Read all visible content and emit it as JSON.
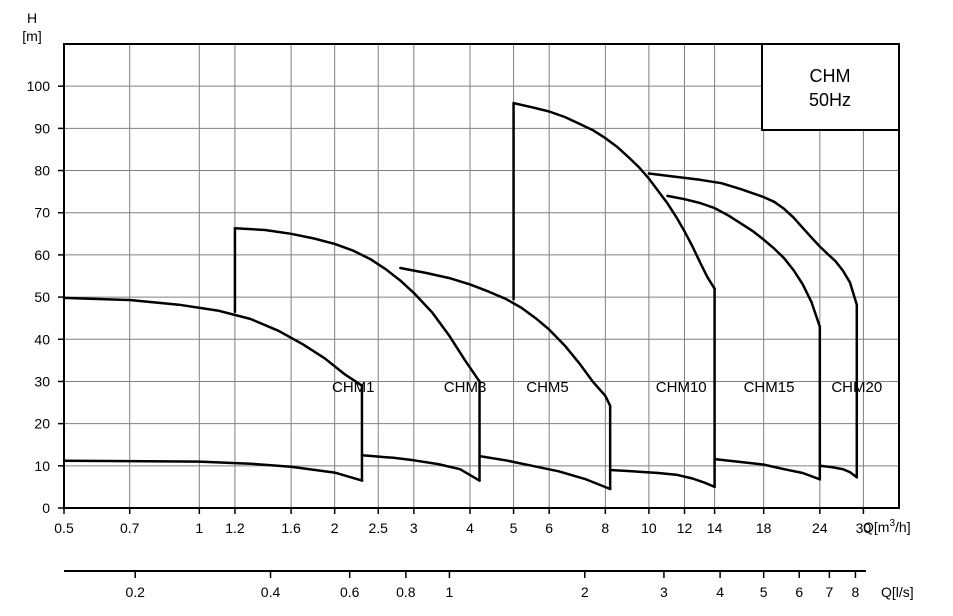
{
  "chart_data": {
    "type": "line",
    "y_axis": {
      "title_line1": "H",
      "title_line2": "[m]",
      "ylim": [
        0,
        110
      ],
      "ticks": [
        0,
        10,
        20,
        30,
        40,
        50,
        60,
        70,
        80,
        90,
        100
      ]
    },
    "x_axis_flow_m3h": {
      "label": "Q[m³/h]",
      "label_prefix": "Q[m",
      "label_sup": "3",
      "label_suffix": "/h]",
      "scale": "log",
      "xlim": [
        0.5,
        36
      ],
      "ticks": [
        0.5,
        0.7,
        1,
        1.2,
        1.6,
        2,
        2.5,
        3,
        4,
        5,
        6,
        8,
        10,
        12,
        14,
        18,
        24,
        30
      ],
      "tick_labels": [
        "0.5",
        "0.7",
        "1",
        "1.2",
        "1.6",
        "2",
        "2.5",
        "3",
        "4",
        "5",
        "6",
        "8",
        "10",
        "12",
        "14",
        "18",
        "24",
        "30"
      ]
    },
    "x_axis_flow_ls": {
      "label": "Q[l/s]",
      "scale": "log",
      "ticks": [
        0.2,
        0.4,
        0.6,
        0.8,
        1,
        2,
        3,
        4,
        5,
        6,
        7,
        8
      ],
      "tick_labels": [
        "0.2",
        "0.4",
        "0.6",
        "0.8",
        "1",
        "2",
        "3",
        "4",
        "5",
        "6",
        "7",
        "8"
      ]
    },
    "legend_box": {
      "line1": "CHM",
      "line2": "50Hz"
    },
    "grid": true,
    "series": [
      {
        "name": "CHM1",
        "label_at": [
          2.2,
          27.5
        ],
        "upper": [
          [
            0.5,
            49.8
          ],
          [
            0.7,
            49.3
          ],
          [
            0.9,
            48.2
          ],
          [
            1.1,
            46.8
          ],
          [
            1.3,
            44.8
          ],
          [
            1.5,
            42.0
          ],
          [
            1.7,
            38.8
          ],
          [
            1.9,
            35.5
          ],
          [
            2.1,
            31.8
          ],
          [
            2.3,
            29.0
          ]
        ],
        "lower": [
          [
            0.5,
            11.2
          ],
          [
            1.0,
            11.0
          ],
          [
            1.3,
            10.5
          ],
          [
            1.6,
            9.8
          ],
          [
            2.0,
            8.4
          ],
          [
            2.3,
            6.5
          ]
        ],
        "left_edge": false
      },
      {
        "name": "CHM3",
        "label_at": [
          3.9,
          27.5
        ],
        "upper": [
          [
            1.2,
            66.3
          ],
          [
            1.4,
            65.9
          ],
          [
            1.6,
            65.0
          ],
          [
            1.8,
            63.9
          ],
          [
            2.0,
            62.6
          ],
          [
            2.2,
            61.0
          ],
          [
            2.4,
            59.0
          ],
          [
            2.6,
            56.6
          ],
          [
            2.8,
            53.9
          ],
          [
            3.0,
            51.0
          ],
          [
            3.3,
            46.3
          ],
          [
            3.6,
            40.8
          ],
          [
            3.9,
            35.0
          ],
          [
            4.2,
            30.0
          ]
        ],
        "lower": [
          [
            2.3,
            12.5
          ],
          [
            2.7,
            11.9
          ],
          [
            3.0,
            11.3
          ],
          [
            3.4,
            10.4
          ],
          [
            3.8,
            9.2
          ],
          [
            4.2,
            6.5
          ]
        ],
        "left_edge": true,
        "left_edge_bottom": 46.5
      },
      {
        "name": "CHM5",
        "label_at": [
          5.95,
          27.5
        ],
        "upper": [
          [
            2.8,
            56.9
          ],
          [
            3.2,
            55.7
          ],
          [
            3.6,
            54.5
          ],
          [
            4.0,
            53.0
          ],
          [
            4.4,
            51.3
          ],
          [
            4.8,
            49.6
          ],
          [
            5.2,
            47.5
          ],
          [
            5.6,
            45.0
          ],
          [
            6.0,
            42.3
          ],
          [
            6.5,
            38.5
          ],
          [
            7.0,
            34.3
          ],
          [
            7.5,
            30.0
          ],
          [
            8.0,
            26.6
          ],
          [
            8.2,
            24.2
          ]
        ],
        "lower": [
          [
            4.2,
            12.3
          ],
          [
            4.8,
            11.3
          ],
          [
            5.5,
            10.0
          ],
          [
            6.3,
            8.7
          ],
          [
            7.2,
            6.9
          ],
          [
            8.2,
            4.5
          ]
        ],
        "left_edge": false
      },
      {
        "name": "CHM10",
        "label_at": [
          11.8,
          27.5
        ],
        "upper": [
          [
            5.0,
            96.0
          ],
          [
            5.5,
            95.0
          ],
          [
            6.0,
            94.0
          ],
          [
            6.5,
            92.7
          ],
          [
            7.0,
            91.1
          ],
          [
            7.5,
            89.6
          ],
          [
            8.0,
            87.7
          ],
          [
            8.5,
            85.6
          ],
          [
            9.0,
            83.2
          ],
          [
            9.5,
            80.8
          ],
          [
            10.0,
            78.1
          ],
          [
            10.5,
            75.1
          ],
          [
            11.0,
            72.2
          ],
          [
            11.5,
            69.0
          ],
          [
            12.0,
            65.6
          ],
          [
            12.5,
            62.0
          ],
          [
            13.0,
            58.2
          ],
          [
            13.5,
            54.7
          ],
          [
            14.0,
            52.0
          ]
        ],
        "lower": [
          [
            8.2,
            9.0
          ],
          [
            9.5,
            8.6
          ],
          [
            10.5,
            8.3
          ],
          [
            11.5,
            7.9
          ],
          [
            12.5,
            7.0
          ],
          [
            13.3,
            6.0
          ],
          [
            14.0,
            5.0
          ]
        ],
        "left_edge": true,
        "left_edge_bottom": 49.5
      },
      {
        "name": "CHM15",
        "label_at": [
          18.5,
          27.5
        ],
        "upper": [
          [
            11.0,
            74.0
          ],
          [
            12.0,
            73.2
          ],
          [
            13.0,
            72.3
          ],
          [
            14.0,
            71.1
          ],
          [
            15.0,
            69.4
          ],
          [
            16.0,
            67.5
          ],
          [
            17.0,
            65.7
          ],
          [
            18.0,
            63.6
          ],
          [
            19.0,
            61.5
          ],
          [
            20.0,
            59.2
          ],
          [
            21.0,
            56.3
          ],
          [
            22.0,
            53.0
          ],
          [
            23.0,
            48.8
          ],
          [
            24.0,
            43.0
          ]
        ],
        "lower": [
          [
            14.0,
            11.6
          ],
          [
            16.0,
            10.9
          ],
          [
            18.0,
            10.3
          ],
          [
            20.0,
            9.2
          ],
          [
            22.0,
            8.3
          ],
          [
            24.0,
            6.8
          ]
        ],
        "left_edge": false
      },
      {
        "name": "CHM20",
        "label_at": [
          29.0,
          27.5
        ],
        "upper": [
          [
            10.0,
            79.3
          ],
          [
            11.5,
            78.5
          ],
          [
            13.0,
            77.8
          ],
          [
            14.5,
            77.0
          ],
          [
            16.0,
            75.6
          ],
          [
            18.0,
            73.7
          ],
          [
            19.0,
            72.6
          ],
          [
            20.0,
            70.9
          ],
          [
            21.0,
            68.8
          ],
          [
            22.0,
            66.4
          ],
          [
            23.0,
            64.1
          ],
          [
            24.0,
            62.0
          ],
          [
            25.0,
            60.2
          ],
          [
            26.0,
            58.5
          ],
          [
            27.0,
            56.3
          ],
          [
            28.0,
            53.5
          ],
          [
            29.0,
            48.2
          ]
        ],
        "lower": [
          [
            24.0,
            10.0
          ],
          [
            25.5,
            9.7
          ],
          [
            27.0,
            9.2
          ],
          [
            28.0,
            8.5
          ],
          [
            29.0,
            7.3
          ]
        ],
        "left_edge": false
      }
    ]
  }
}
